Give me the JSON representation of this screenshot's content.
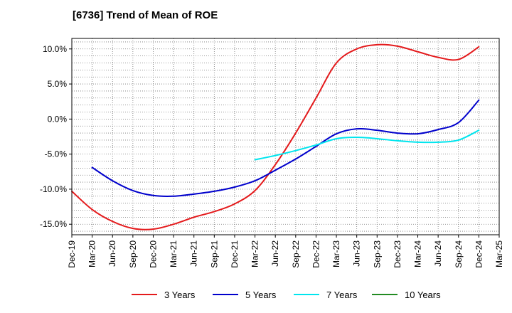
{
  "title": "[6736]  Trend of Mean of ROE",
  "chart_data": {
    "type": "line",
    "x": [
      "Dec-19",
      "Mar-20",
      "Jun-20",
      "Sep-20",
      "Dec-20",
      "Mar-21",
      "Jun-21",
      "Sep-21",
      "Dec-21",
      "Mar-22",
      "Jun-22",
      "Sep-22",
      "Dec-22",
      "Mar-23",
      "Jun-23",
      "Sep-23",
      "Dec-23",
      "Mar-24",
      "Jun-24",
      "Sep-24",
      "Dec-24",
      "Mar-25"
    ],
    "ylim": [
      -16.5,
      11.5
    ],
    "yticks": [
      10,
      5,
      0,
      -5,
      -10,
      -15
    ],
    "ytick_labels": [
      "10.0%",
      "5.0%",
      "0.0%",
      "-5.0%",
      "-10.0%",
      "-15.0%"
    ],
    "grid": true,
    "legend_position": "bottom",
    "series": [
      {
        "name": "3 Years",
        "color": "#e41a1c",
        "values": [
          -10.3,
          -12.9,
          -14.6,
          -15.6,
          -15.7,
          -15.0,
          -14.0,
          -13.2,
          -12.1,
          -10.2,
          -6.5,
          -2.0,
          3.0,
          8.0,
          10.0,
          10.6,
          10.4,
          9.6,
          8.8,
          8.5,
          10.3,
          null
        ]
      },
      {
        "name": "5 Years",
        "color": "#0000cc",
        "values": [
          null,
          -6.9,
          -8.8,
          -10.2,
          -10.9,
          -11.0,
          -10.7,
          -10.3,
          -9.7,
          -8.8,
          -7.3,
          -5.7,
          -3.9,
          -2.1,
          -1.4,
          -1.6,
          -2.0,
          -2.1,
          -1.5,
          -0.5,
          2.7,
          null
        ]
      },
      {
        "name": "7 Years",
        "color": "#00e5ee",
        "values": [
          null,
          null,
          null,
          null,
          null,
          null,
          null,
          null,
          null,
          -5.8,
          -5.2,
          -4.5,
          -3.7,
          -2.8,
          -2.6,
          -2.8,
          -3.1,
          -3.3,
          -3.3,
          -3.0,
          -1.6,
          null
        ]
      },
      {
        "name": "10 Years",
        "color": "#228b22",
        "values": [
          null,
          null,
          null,
          null,
          null,
          null,
          null,
          null,
          null,
          null,
          null,
          null,
          null,
          null,
          null,
          null,
          null,
          null,
          null,
          null,
          null,
          null
        ]
      }
    ]
  }
}
